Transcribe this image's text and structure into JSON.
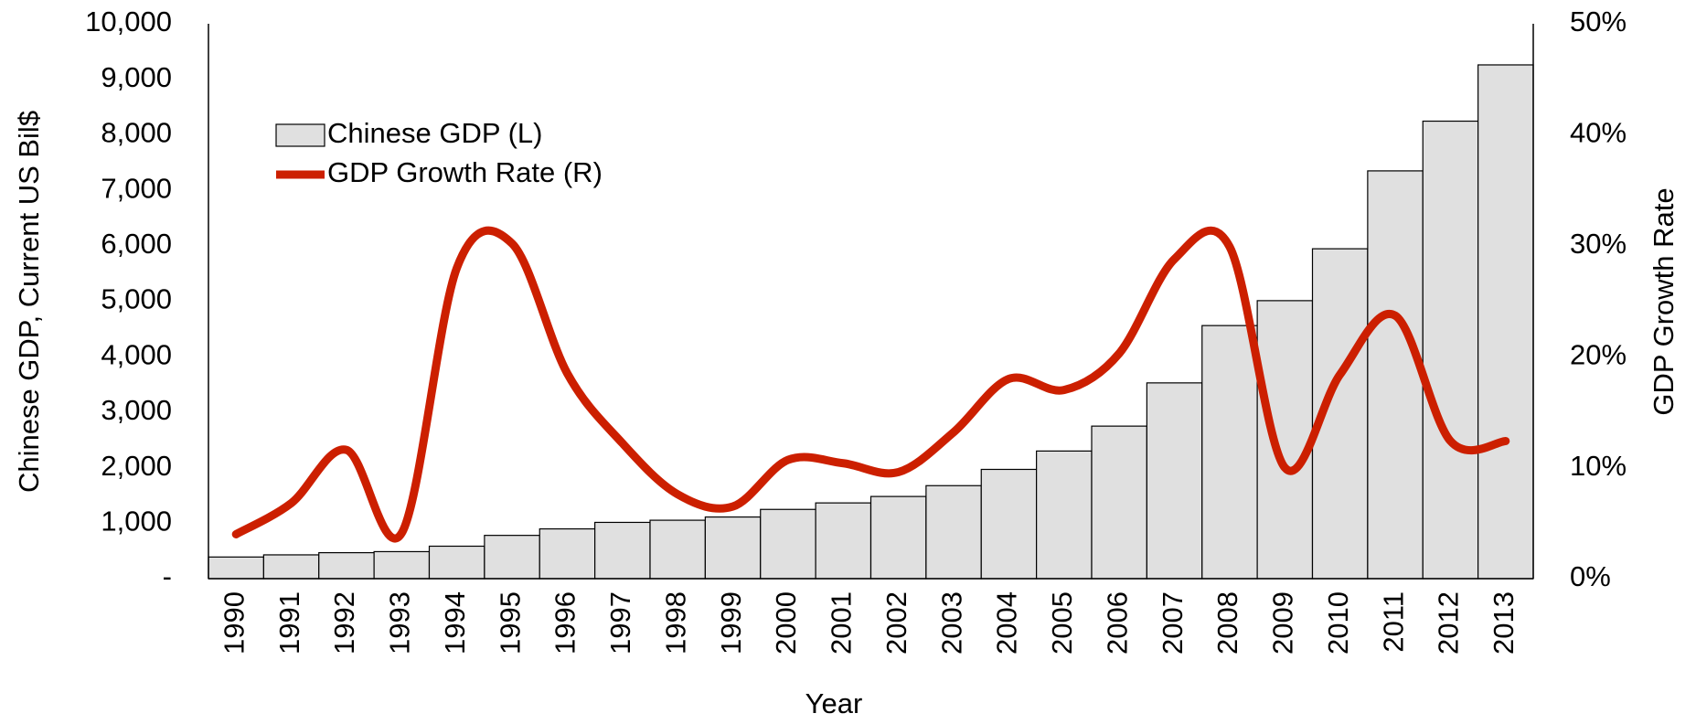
{
  "chart_data": {
    "type": "bar_line",
    "xlabel": "Year",
    "ylabel": "Chinese GDP, Current US Bil$",
    "y2label": "GDP Growth Rate",
    "categories": [
      "1990",
      "1991",
      "1992",
      "1993",
      "1994",
      "1995",
      "1996",
      "1997",
      "1998",
      "1999",
      "2000",
      "2001",
      "2002",
      "2003",
      "2004",
      "2005",
      "2006",
      "2007",
      "2008",
      "2009",
      "2010",
      "2011",
      "2012",
      "2013"
    ],
    "series": [
      {
        "name": "Chinese GDP (L)",
        "type": "bar",
        "color": "#e0e0e0",
        "values": [
          390,
          429,
          468,
          487,
          585,
          780,
          897,
          1014,
          1053,
          1111,
          1248,
          1365,
          1481,
          1676,
          1969,
          2300,
          2749,
          3528,
          4561,
          5010,
          5945,
          7349,
          8245,
          9259
        ]
      },
      {
        "name": "GDP Growth Rate (R)",
        "type": "line",
        "axis": "y2",
        "color": "#cc1f00",
        "values": [
          4.0,
          6.8,
          11.6,
          4.1,
          28.0,
          30.2,
          18.5,
          12.2,
          7.6,
          6.5,
          10.7,
          10.4,
          9.6,
          13.2,
          18.0,
          17.0,
          20.3,
          28.8,
          29.9,
          10.0,
          18.4,
          23.7,
          12.4,
          12.4
        ]
      }
    ],
    "ylim": [
      0,
      10000
    ],
    "yticks": [
      {
        "value": 0,
        "label": "-"
      },
      {
        "value": 1000,
        "label": "1,000"
      },
      {
        "value": 2000,
        "label": "2,000"
      },
      {
        "value": 3000,
        "label": "3,000"
      },
      {
        "value": 4000,
        "label": "4,000"
      },
      {
        "value": 5000,
        "label": "5,000"
      },
      {
        "value": 6000,
        "label": "6,000"
      },
      {
        "value": 7000,
        "label": "7,000"
      },
      {
        "value": 8000,
        "label": "8,000"
      },
      {
        "value": 9000,
        "label": "9,000"
      },
      {
        "value": 10000,
        "label": "10,000"
      }
    ],
    "y2lim": [
      0,
      50
    ],
    "y2ticks": [
      {
        "value": 0,
        "label": "0%"
      },
      {
        "value": 10,
        "label": "10%"
      },
      {
        "value": 20,
        "label": "20%"
      },
      {
        "value": 30,
        "label": "30%"
      },
      {
        "value": 40,
        "label": "40%"
      },
      {
        "value": 50,
        "label": "50%"
      }
    ],
    "legend": "upper left",
    "grid": false
  }
}
